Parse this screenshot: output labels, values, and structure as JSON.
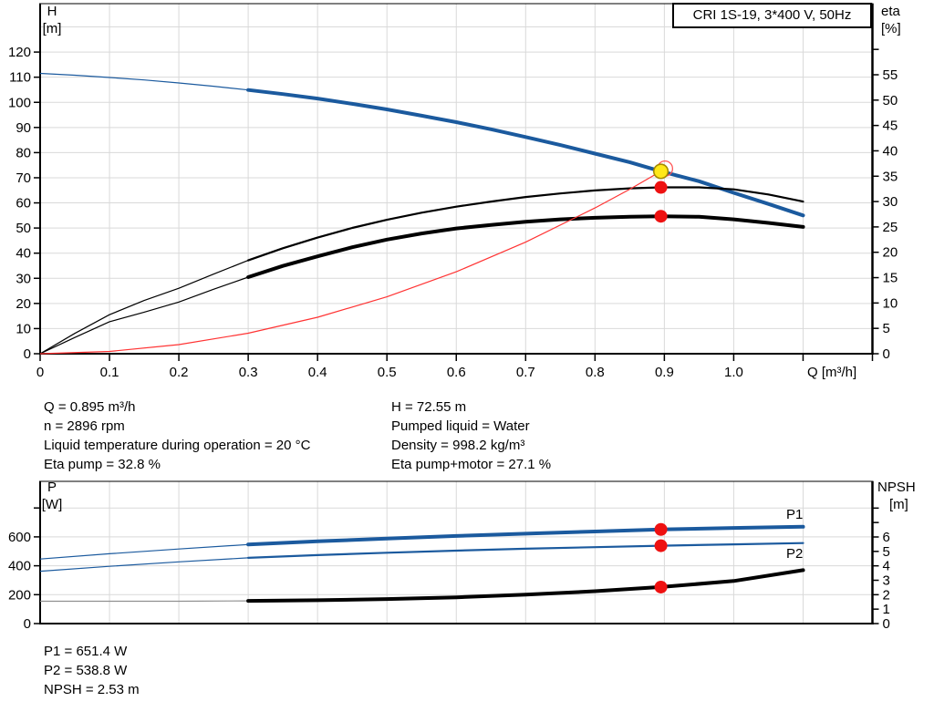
{
  "chart_data": [
    {
      "type": "line",
      "name": "hq-eta-chart",
      "title": "CRI 1S-19, 3*400 V, 50Hz",
      "xlabel": "Q [m³/h]",
      "x_range": [
        0,
        1.2
      ],
      "grid": true,
      "left_axis": {
        "label_lines": [
          "H",
          "[m]"
        ],
        "range": [
          0,
          139
        ],
        "ticks": [
          0,
          10,
          20,
          30,
          40,
          50,
          60,
          70,
          80,
          90,
          100,
          110,
          120
        ],
        "extra_ticks": []
      },
      "right_axis": {
        "label_lines": [
          "eta",
          "[%]"
        ],
        "range": [
          0,
          69
        ],
        "ticks": [
          0,
          5,
          10,
          15,
          20,
          25,
          30,
          35,
          40,
          45,
          50,
          55
        ],
        "extra_ticks": [
          60
        ]
      },
      "x_axis": {
        "ticks": [
          0,
          0.1,
          0.2,
          0.3,
          0.4,
          0.5,
          0.6,
          0.7,
          0.8,
          0.9,
          1.0,
          1.1,
          1.2
        ],
        "tick_labels": [
          "0",
          "0.1",
          "0.2",
          "0.3",
          "0.4",
          "0.5",
          "0.6",
          "0.7",
          "0.8",
          "0.9",
          "1.0"
        ]
      },
      "series": [
        {
          "name": "H",
          "axis": "left",
          "color": "#1b5a9e",
          "weight": "bold",
          "split": true,
          "points": [
            [
              0,
              111.5
            ],
            [
              0.05,
              110.8
            ],
            [
              0.1,
              109.9
            ],
            [
              0.15,
              108.9
            ],
            [
              0.2,
              107.7
            ],
            [
              0.25,
              106.4
            ],
            [
              0.3,
              104.9
            ],
            [
              0.35,
              103.3
            ],
            [
              0.4,
              101.5
            ],
            [
              0.45,
              99.4
            ],
            [
              0.5,
              97.2
            ],
            [
              0.55,
              94.7
            ],
            [
              0.6,
              92.1
            ],
            [
              0.65,
              89.3
            ],
            [
              0.7,
              86.2
            ],
            [
              0.75,
              83.0
            ],
            [
              0.8,
              79.6
            ],
            [
              0.85,
              76.2
            ],
            [
              0.895,
              72.55
            ],
            [
              0.95,
              68.6
            ],
            [
              1.0,
              64.0
            ],
            [
              1.05,
              59.6
            ],
            [
              1.1,
              55.0
            ]
          ]
        },
        {
          "name": "Eta pump",
          "axis": "right",
          "color": "#000000",
          "weight": "medium",
          "split": true,
          "points": [
            [
              0,
              0
            ],
            [
              0.05,
              4.0
            ],
            [
              0.1,
              7.7
            ],
            [
              0.15,
              10.5
            ],
            [
              0.2,
              12.9
            ],
            [
              0.25,
              15.7
            ],
            [
              0.3,
              18.4
            ],
            [
              0.35,
              20.8
            ],
            [
              0.4,
              22.9
            ],
            [
              0.45,
              24.8
            ],
            [
              0.5,
              26.4
            ],
            [
              0.55,
              27.8
            ],
            [
              0.6,
              29.0
            ],
            [
              0.65,
              30.0
            ],
            [
              0.7,
              30.9
            ],
            [
              0.75,
              31.6
            ],
            [
              0.8,
              32.2
            ],
            [
              0.85,
              32.6
            ],
            [
              0.895,
              32.8
            ],
            [
              0.95,
              32.8
            ],
            [
              1.0,
              32.4
            ],
            [
              1.05,
              31.4
            ],
            [
              1.1,
              30.0
            ]
          ]
        },
        {
          "name": "Eta pump+motor",
          "axis": "right",
          "color": "#000000",
          "weight": "bold",
          "split": true,
          "points": [
            [
              0,
              0
            ],
            [
              0.05,
              3.2
            ],
            [
              0.1,
              6.3
            ],
            [
              0.15,
              8.2
            ],
            [
              0.2,
              10.2
            ],
            [
              0.25,
              12.7
            ],
            [
              0.3,
              15.1
            ],
            [
              0.35,
              17.3
            ],
            [
              0.4,
              19.2
            ],
            [
              0.45,
              21.0
            ],
            [
              0.5,
              22.5
            ],
            [
              0.55,
              23.7
            ],
            [
              0.6,
              24.7
            ],
            [
              0.65,
              25.4
            ],
            [
              0.7,
              26.0
            ],
            [
              0.75,
              26.5
            ],
            [
              0.8,
              26.8
            ],
            [
              0.85,
              27.0
            ],
            [
              0.895,
              27.1
            ],
            [
              0.95,
              27.0
            ],
            [
              1.0,
              26.5
            ],
            [
              1.05,
              25.8
            ],
            [
              1.1,
              25.0
            ]
          ]
        },
        {
          "name": "System curve",
          "axis": "left",
          "color": "#ff3333",
          "weight": "light",
          "split": false,
          "points": [
            [
              0,
              0
            ],
            [
              0.1,
              0.91
            ],
            [
              0.2,
              3.62
            ],
            [
              0.3,
              8.15
            ],
            [
              0.4,
              14.49
            ],
            [
              0.5,
              22.64
            ],
            [
              0.6,
              32.61
            ],
            [
              0.7,
              44.38
            ],
            [
              0.8,
              57.97
            ],
            [
              0.85,
              65.43
            ],
            [
              0.895,
              72.55
            ]
          ]
        }
      ],
      "operating_points": [
        {
          "series": "H",
          "q": 0.895,
          "value": 72.55,
          "marker": "duty"
        },
        {
          "series": "Eta pump",
          "q": 0.895,
          "value": 32.8,
          "marker": "dot"
        },
        {
          "series": "Eta pump+motor",
          "q": 0.895,
          "value": 27.1,
          "marker": "dot"
        }
      ],
      "annotations": []
    },
    {
      "type": "line",
      "name": "power-npsh-chart",
      "x_range": [
        0,
        1.2
      ],
      "grid": true,
      "left_axis": {
        "label_lines": [
          "P",
          "[W]"
        ],
        "range": [
          0,
          984
        ],
        "ticks": [
          0,
          200,
          400,
          600
        ],
        "extra_ticks": [
          800
        ]
      },
      "right_axis": {
        "label_lines": [
          "NPSH",
          "[m]"
        ],
        "range": [
          0,
          9.8
        ],
        "ticks": [
          0,
          1,
          2,
          3,
          4,
          5,
          6
        ],
        "extra_ticks": [
          7,
          8
        ]
      },
      "x_axis": {
        "ticks": [
          0,
          0.1,
          0.2,
          0.3,
          0.4,
          0.5,
          0.6,
          0.7,
          0.8,
          0.9,
          1.0,
          1.1,
          1.2
        ],
        "tick_labels": []
      },
      "series": [
        {
          "name": "P1",
          "axis": "left",
          "color": "#1b5a9e",
          "weight": "bold",
          "split": true,
          "points": [
            [
              0,
              447
            ],
            [
              0.1,
              483
            ],
            [
              0.2,
              516
            ],
            [
              0.3,
              547
            ],
            [
              0.4,
              569
            ],
            [
              0.5,
              588
            ],
            [
              0.6,
              606
            ],
            [
              0.7,
              622
            ],
            [
              0.8,
              637
            ],
            [
              0.895,
              651.4
            ],
            [
              1.0,
              662
            ],
            [
              1.1,
              670
            ]
          ]
        },
        {
          "name": "P2",
          "axis": "left",
          "color": "#1b5a9e",
          "weight": "medium",
          "split": true,
          "points": [
            [
              0,
              362
            ],
            [
              0.1,
              396
            ],
            [
              0.2,
              427
            ],
            [
              0.3,
              455
            ],
            [
              0.4,
              474
            ],
            [
              0.5,
              490
            ],
            [
              0.6,
              505
            ],
            [
              0.7,
              518
            ],
            [
              0.8,
              529
            ],
            [
              0.895,
              538.8
            ],
            [
              1.0,
              548
            ],
            [
              1.1,
              557
            ]
          ]
        },
        {
          "name": "NPSH",
          "axis": "right",
          "color": "#000000",
          "weight": "bold",
          "split": true,
          "intro_color": "#909090",
          "points": [
            [
              0,
              1.55
            ],
            [
              0.1,
              1.55
            ],
            [
              0.2,
              1.55
            ],
            [
              0.3,
              1.57
            ],
            [
              0.4,
              1.62
            ],
            [
              0.5,
              1.7
            ],
            [
              0.6,
              1.82
            ],
            [
              0.7,
              2.0
            ],
            [
              0.8,
              2.24
            ],
            [
              0.895,
              2.53
            ],
            [
              1.0,
              2.95
            ],
            [
              1.1,
              3.7
            ]
          ]
        }
      ],
      "operating_points": [
        {
          "series": "P1",
          "q": 0.895,
          "value": 651.4,
          "marker": "dot"
        },
        {
          "series": "P2",
          "q": 0.895,
          "value": 538.8,
          "marker": "dot"
        },
        {
          "series": "NPSH",
          "q": 0.895,
          "value": 2.53,
          "marker": "dot"
        }
      ],
      "annotations": [
        {
          "text": "P1"
        },
        {
          "text": "P2"
        }
      ]
    }
  ],
  "info_top_left": [
    "Q = 0.895 m³/h",
    "n = 2896 rpm",
    "Liquid temperature during operation = 20 °C",
    "Eta pump = 32.8 %"
  ],
  "info_top_right": [
    "H = 72.55 m",
    "Pumped liquid = Water",
    "Density = 998.2 kg/m³",
    "Eta pump+motor = 27.1 %"
  ],
  "info_bottom": [
    "P1 = 651.4 W",
    "P2 = 538.8 W",
    "NPSH = 2.53 m"
  ],
  "colors": {
    "curve_blue": "#1b5a9e",
    "curve_black": "#000000",
    "curve_red": "#ff3333",
    "dot_red": "#ee1111",
    "dot_ring": "#ff5555",
    "duty_fill": "#ffe818",
    "duty_stroke": "#a58a00",
    "grid": "#d9d9d9",
    "npsh_intro": "#909090",
    "axis": "#000000"
  }
}
